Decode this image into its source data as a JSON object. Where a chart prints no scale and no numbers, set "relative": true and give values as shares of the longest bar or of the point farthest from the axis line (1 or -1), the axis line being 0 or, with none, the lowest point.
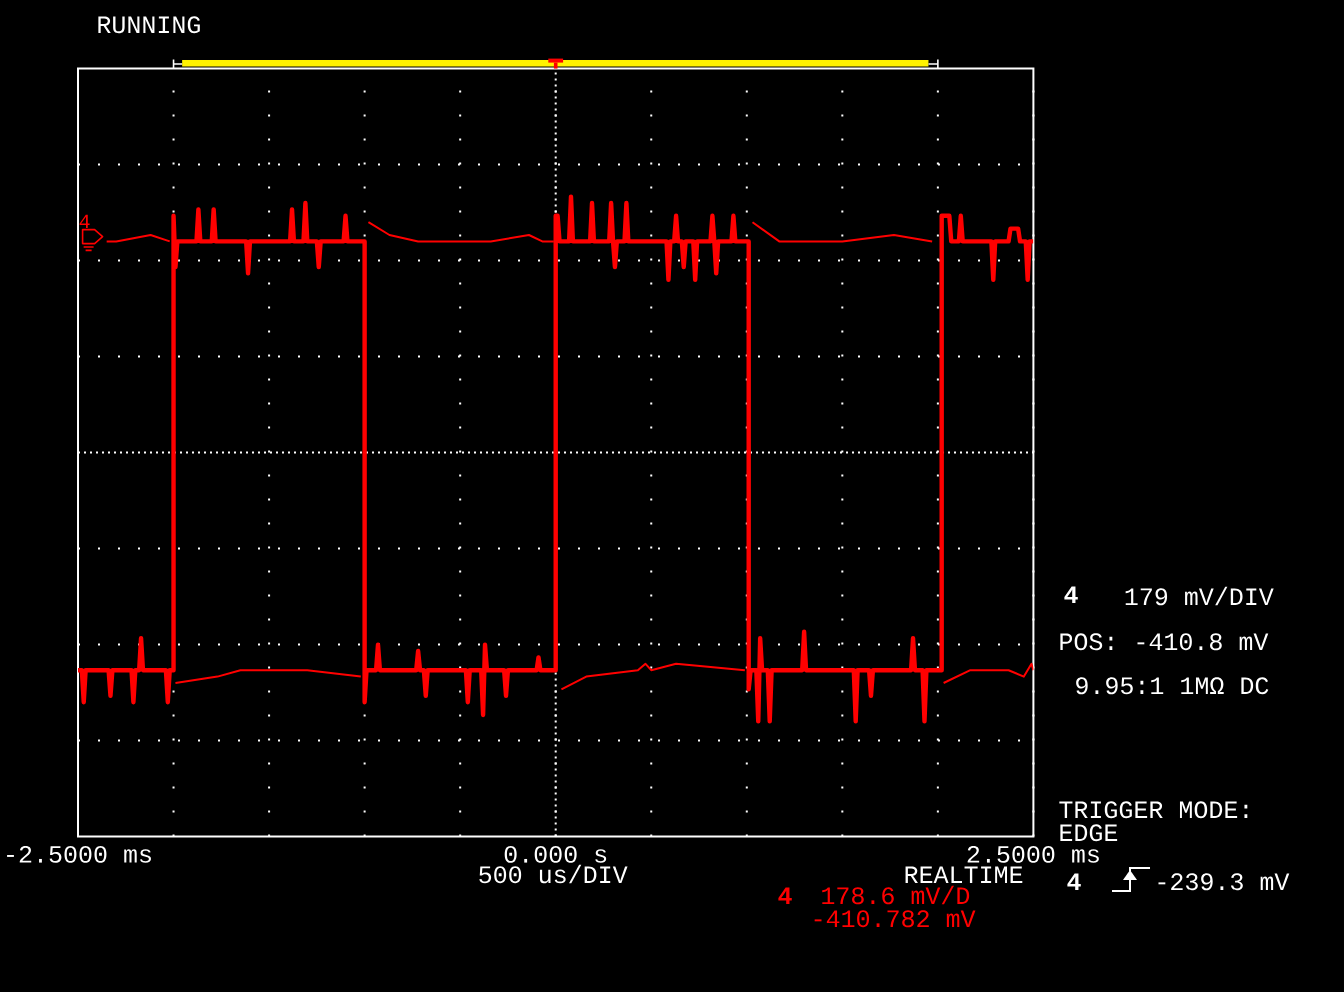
{
  "chart_data": {
    "type": "line",
    "relative": true,
    "xlabel": "500 us/DIV",
    "xlim": [
      -2.5,
      2.5
    ],
    "xticks": [
      {
        "value": -2.5,
        "label": "-2.5000 ms"
      },
      {
        "value": -2.0,
        "label": null
      },
      {
        "value": -1.5,
        "label": null
      },
      {
        "value": -1.0,
        "label": null
      },
      {
        "value": -0.5,
        "label": null
      },
      {
        "value": 0,
        "label": "0.000 s"
      },
      {
        "value": 0.5,
        "label": null
      },
      {
        "value": 1.0,
        "label": null
      },
      {
        "value": 1.5,
        "label": null
      },
      {
        "value": 2.0,
        "label": null
      },
      {
        "value": 2.5,
        "label": "2.5000 ms"
      }
    ],
    "grid": true,
    "line_style": "solid",
    "series": [
      {
        "color": "#ff0000",
        "x": [
          -2.5,
          -2.48,
          -2.47,
          -2.46,
          -2.34,
          -2.33,
          -2.32,
          -2.22,
          -2.21,
          -2.2,
          -2.18,
          -2.17,
          -2.16,
          -2.04,
          -2.03,
          -2.02,
          -2.0,
          -2.0,
          -1.99,
          -1.98,
          -1.88,
          -1.87,
          -1.86,
          -1.8,
          -1.79,
          -1.78,
          -1.62,
          -1.61,
          -1.6,
          -1.39,
          -1.38,
          -1.37,
          -1.32,
          -1.31,
          -1.3,
          -1.25,
          -1.24,
          -1.23,
          -1.11,
          -1.1,
          -1.09,
          -1.0,
          -1.0,
          -0.99,
          -0.94,
          -0.93,
          -0.92,
          -0.73,
          -0.72,
          -0.71,
          -0.69,
          -0.68,
          -0.67,
          -0.47,
          -0.46,
          -0.45,
          -0.39,
          -0.38,
          -0.37,
          -0.36,
          -0.27,
          -0.26,
          -0.25,
          -0.1,
          -0.09,
          -0.08,
          0.0,
          0.0,
          0.01,
          0.02,
          0.07,
          0.08,
          0.09,
          0.18,
          0.19,
          0.2,
          0.28,
          0.29,
          0.3,
          0.31,
          0.32,
          0.36,
          0.37,
          0.38,
          0.58,
          0.59,
          0.6,
          0.62,
          0.63,
          0.64,
          0.66,
          0.67,
          0.68,
          0.72,
          0.73,
          0.74,
          0.81,
          0.82,
          0.83,
          0.84,
          0.85,
          0.92,
          0.93,
          0.94,
          1.01,
          1.01,
          1.02,
          1.05,
          1.06,
          1.07,
          1.08,
          1.11,
          1.12,
          1.13,
          1.29,
          1.3,
          1.31,
          1.56,
          1.57,
          1.58,
          1.64,
          1.65,
          1.66,
          1.86,
          1.87,
          1.88,
          1.92,
          1.93,
          1.94,
          2.02,
          2.02,
          2.06,
          2.07,
          2.11,
          2.12,
          2.13,
          2.28,
          2.29,
          2.3,
          2.37,
          2.38,
          2.42,
          2.43,
          2.46,
          2.47,
          2.48,
          2.5
        ],
        "values": [
          0.26,
          0.26,
          0.21,
          0.26,
          0.26,
          0.22,
          0.26,
          0.26,
          0.21,
          0.26,
          0.26,
          0.31,
          0.26,
          0.26,
          0.21,
          0.26,
          0.26,
          0.97,
          0.89,
          0.93,
          0.93,
          0.98,
          0.93,
          0.93,
          0.98,
          0.93,
          0.93,
          0.88,
          0.93,
          0.93,
          0.98,
          0.93,
          0.93,
          0.99,
          0.93,
          0.93,
          0.89,
          0.93,
          0.93,
          0.97,
          0.93,
          0.93,
          0.21,
          0.26,
          0.26,
          0.3,
          0.26,
          0.26,
          0.29,
          0.26,
          0.26,
          0.22,
          0.26,
          0.26,
          0.21,
          0.26,
          0.26,
          0.19,
          0.3,
          0.26,
          0.26,
          0.22,
          0.26,
          0.26,
          0.28,
          0.26,
          0.26,
          0.97,
          0.97,
          0.93,
          0.93,
          1.0,
          0.93,
          0.93,
          0.99,
          0.93,
          0.93,
          0.99,
          0.93,
          0.89,
          0.93,
          0.93,
          0.99,
          0.93,
          0.93,
          0.87,
          0.93,
          0.93,
          0.97,
          0.93,
          0.93,
          0.89,
          0.93,
          0.93,
          0.87,
          0.93,
          0.93,
          0.97,
          0.93,
          0.88,
          0.93,
          0.93,
          0.97,
          0.93,
          0.93,
          0.23,
          0.26,
          0.26,
          0.18,
          0.31,
          0.26,
          0.26,
          0.18,
          0.26,
          0.26,
          0.32,
          0.26,
          0.26,
          0.18,
          0.26,
          0.26,
          0.22,
          0.26,
          0.26,
          0.31,
          0.26,
          0.26,
          0.18,
          0.26,
          0.26,
          0.97,
          0.97,
          0.93,
          0.93,
          0.97,
          0.93,
          0.93,
          0.87,
          0.93,
          0.93,
          0.95,
          0.95,
          0.93,
          0.93,
          0.87,
          0.93,
          0.93
        ]
      },
      {
        "color": "#ff0000",
        "x": [
          -2.35,
          -2.3,
          -2.12,
          -2.02,
          -2.01,
          -1.99,
          -1.77,
          -1.65,
          -1.3,
          -1.02,
          -1.0,
          -0.98,
          -0.87,
          -0.72,
          -0.34,
          -0.14,
          -0.07,
          -0.01,
          0.0,
          0.03,
          0.16,
          0.43,
          0.47,
          0.5,
          0.63,
          0.99,
          1.0,
          1.03,
          1.17,
          1.35,
          1.5,
          1.77,
          1.97,
          2.0,
          2.03,
          2.17,
          2.37,
          2.45,
          2.49,
          2.5
        ],
        "values": [
          0.93,
          0.93,
          0.94,
          0.93,
          null,
          0.24,
          0.25,
          0.26,
          0.26,
          0.25,
          null,
          0.96,
          0.94,
          0.93,
          0.93,
          0.94,
          0.93,
          0.93,
          null,
          0.23,
          0.25,
          0.26,
          0.27,
          0.26,
          0.27,
          0.26,
          null,
          0.96,
          0.93,
          0.93,
          0.93,
          0.94,
          0.93,
          null,
          0.24,
          0.26,
          0.26,
          0.25,
          0.27,
          0.26
        ]
      }
    ],
    "annotations": [
      "RUNNING",
      "4",
      "4",
      "179 mV/DIV",
      "POS: -410.8 mV",
      "9.95:1 1MΩ DC",
      "TRIGGER MODE:",
      "EDGE",
      "4",
      "-239.3 mV",
      "REALTIME",
      "4",
      "178.6 mV/D",
      "-410.782 mV"
    ]
  }
}
